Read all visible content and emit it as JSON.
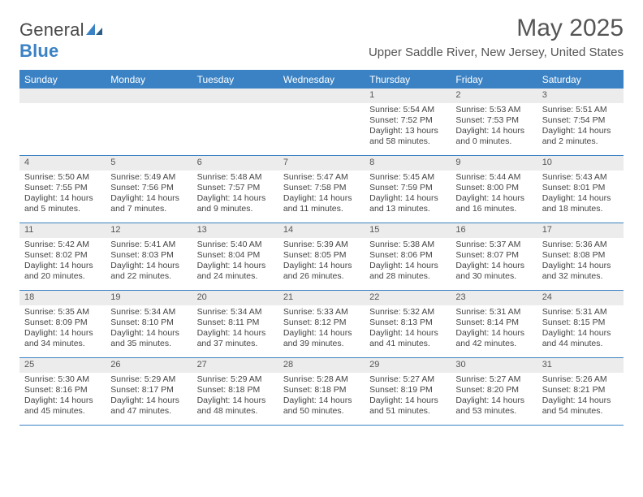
{
  "brand": {
    "name_left": "General",
    "name_right": "Blue"
  },
  "title": "May 2025",
  "location": "Upper Saddle River, New Jersey, United States",
  "colors": {
    "accent": "#3b82c4",
    "daynum_bg": "#ececec",
    "text": "#444444",
    "border": "#3b82c4"
  },
  "fonts": {
    "title_size": 30,
    "location_size": 15,
    "dow_size": 12,
    "cell_size": 10.5
  },
  "days_of_week": [
    "Sunday",
    "Monday",
    "Tuesday",
    "Wednesday",
    "Thursday",
    "Friday",
    "Saturday"
  ],
  "weeks": [
    [
      {
        "blank": true
      },
      {
        "blank": true
      },
      {
        "blank": true
      },
      {
        "blank": true
      },
      {
        "day": "1",
        "sunrise": "Sunrise: 5:54 AM",
        "sunset": "Sunset: 7:52 PM",
        "daylight": "Daylight: 13 hours and 58 minutes."
      },
      {
        "day": "2",
        "sunrise": "Sunrise: 5:53 AM",
        "sunset": "Sunset: 7:53 PM",
        "daylight": "Daylight: 14 hours and 0 minutes."
      },
      {
        "day": "3",
        "sunrise": "Sunrise: 5:51 AM",
        "sunset": "Sunset: 7:54 PM",
        "daylight": "Daylight: 14 hours and 2 minutes."
      }
    ],
    [
      {
        "day": "4",
        "sunrise": "Sunrise: 5:50 AM",
        "sunset": "Sunset: 7:55 PM",
        "daylight": "Daylight: 14 hours and 5 minutes."
      },
      {
        "day": "5",
        "sunrise": "Sunrise: 5:49 AM",
        "sunset": "Sunset: 7:56 PM",
        "daylight": "Daylight: 14 hours and 7 minutes."
      },
      {
        "day": "6",
        "sunrise": "Sunrise: 5:48 AM",
        "sunset": "Sunset: 7:57 PM",
        "daylight": "Daylight: 14 hours and 9 minutes."
      },
      {
        "day": "7",
        "sunrise": "Sunrise: 5:47 AM",
        "sunset": "Sunset: 7:58 PM",
        "daylight": "Daylight: 14 hours and 11 minutes."
      },
      {
        "day": "8",
        "sunrise": "Sunrise: 5:45 AM",
        "sunset": "Sunset: 7:59 PM",
        "daylight": "Daylight: 14 hours and 13 minutes."
      },
      {
        "day": "9",
        "sunrise": "Sunrise: 5:44 AM",
        "sunset": "Sunset: 8:00 PM",
        "daylight": "Daylight: 14 hours and 16 minutes."
      },
      {
        "day": "10",
        "sunrise": "Sunrise: 5:43 AM",
        "sunset": "Sunset: 8:01 PM",
        "daylight": "Daylight: 14 hours and 18 minutes."
      }
    ],
    [
      {
        "day": "11",
        "sunrise": "Sunrise: 5:42 AM",
        "sunset": "Sunset: 8:02 PM",
        "daylight": "Daylight: 14 hours and 20 minutes."
      },
      {
        "day": "12",
        "sunrise": "Sunrise: 5:41 AM",
        "sunset": "Sunset: 8:03 PM",
        "daylight": "Daylight: 14 hours and 22 minutes."
      },
      {
        "day": "13",
        "sunrise": "Sunrise: 5:40 AM",
        "sunset": "Sunset: 8:04 PM",
        "daylight": "Daylight: 14 hours and 24 minutes."
      },
      {
        "day": "14",
        "sunrise": "Sunrise: 5:39 AM",
        "sunset": "Sunset: 8:05 PM",
        "daylight": "Daylight: 14 hours and 26 minutes."
      },
      {
        "day": "15",
        "sunrise": "Sunrise: 5:38 AM",
        "sunset": "Sunset: 8:06 PM",
        "daylight": "Daylight: 14 hours and 28 minutes."
      },
      {
        "day": "16",
        "sunrise": "Sunrise: 5:37 AM",
        "sunset": "Sunset: 8:07 PM",
        "daylight": "Daylight: 14 hours and 30 minutes."
      },
      {
        "day": "17",
        "sunrise": "Sunrise: 5:36 AM",
        "sunset": "Sunset: 8:08 PM",
        "daylight": "Daylight: 14 hours and 32 minutes."
      }
    ],
    [
      {
        "day": "18",
        "sunrise": "Sunrise: 5:35 AM",
        "sunset": "Sunset: 8:09 PM",
        "daylight": "Daylight: 14 hours and 34 minutes."
      },
      {
        "day": "19",
        "sunrise": "Sunrise: 5:34 AM",
        "sunset": "Sunset: 8:10 PM",
        "daylight": "Daylight: 14 hours and 35 minutes."
      },
      {
        "day": "20",
        "sunrise": "Sunrise: 5:34 AM",
        "sunset": "Sunset: 8:11 PM",
        "daylight": "Daylight: 14 hours and 37 minutes."
      },
      {
        "day": "21",
        "sunrise": "Sunrise: 5:33 AM",
        "sunset": "Sunset: 8:12 PM",
        "daylight": "Daylight: 14 hours and 39 minutes."
      },
      {
        "day": "22",
        "sunrise": "Sunrise: 5:32 AM",
        "sunset": "Sunset: 8:13 PM",
        "daylight": "Daylight: 14 hours and 41 minutes."
      },
      {
        "day": "23",
        "sunrise": "Sunrise: 5:31 AM",
        "sunset": "Sunset: 8:14 PM",
        "daylight": "Daylight: 14 hours and 42 minutes."
      },
      {
        "day": "24",
        "sunrise": "Sunrise: 5:31 AM",
        "sunset": "Sunset: 8:15 PM",
        "daylight": "Daylight: 14 hours and 44 minutes."
      }
    ],
    [
      {
        "day": "25",
        "sunrise": "Sunrise: 5:30 AM",
        "sunset": "Sunset: 8:16 PM",
        "daylight": "Daylight: 14 hours and 45 minutes."
      },
      {
        "day": "26",
        "sunrise": "Sunrise: 5:29 AM",
        "sunset": "Sunset: 8:17 PM",
        "daylight": "Daylight: 14 hours and 47 minutes."
      },
      {
        "day": "27",
        "sunrise": "Sunrise: 5:29 AM",
        "sunset": "Sunset: 8:18 PM",
        "daylight": "Daylight: 14 hours and 48 minutes."
      },
      {
        "day": "28",
        "sunrise": "Sunrise: 5:28 AM",
        "sunset": "Sunset: 8:18 PM",
        "daylight": "Daylight: 14 hours and 50 minutes."
      },
      {
        "day": "29",
        "sunrise": "Sunrise: 5:27 AM",
        "sunset": "Sunset: 8:19 PM",
        "daylight": "Daylight: 14 hours and 51 minutes."
      },
      {
        "day": "30",
        "sunrise": "Sunrise: 5:27 AM",
        "sunset": "Sunset: 8:20 PM",
        "daylight": "Daylight: 14 hours and 53 minutes."
      },
      {
        "day": "31",
        "sunrise": "Sunrise: 5:26 AM",
        "sunset": "Sunset: 8:21 PM",
        "daylight": "Daylight: 14 hours and 54 minutes."
      }
    ]
  ]
}
